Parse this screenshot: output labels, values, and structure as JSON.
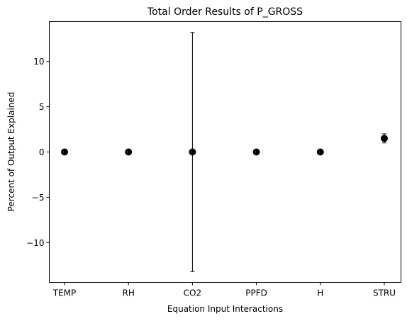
{
  "chart_data": {
    "type": "scatter",
    "title": "Total Order Results of P_GROSS",
    "xlabel": "Equation Input Interactions",
    "ylabel": "Percent of Output Explained",
    "categories": [
      "TEMP",
      "RH",
      "CO2",
      "PPFD",
      "H",
      "STRU"
    ],
    "values": [
      0,
      0,
      0,
      0,
      0,
      1.5
    ],
    "errors": [
      0,
      0,
      13.2,
      0,
      0,
      0.5
    ],
    "ylim": [
      -14.4,
      14.4
    ],
    "yticks": [
      -10,
      -5,
      0,
      5,
      10
    ],
    "ytick_labels": [
      "−10",
      "−5",
      "0",
      "5",
      "10"
    ],
    "grid": false,
    "legend": "none",
    "marker_color": "#000000"
  }
}
